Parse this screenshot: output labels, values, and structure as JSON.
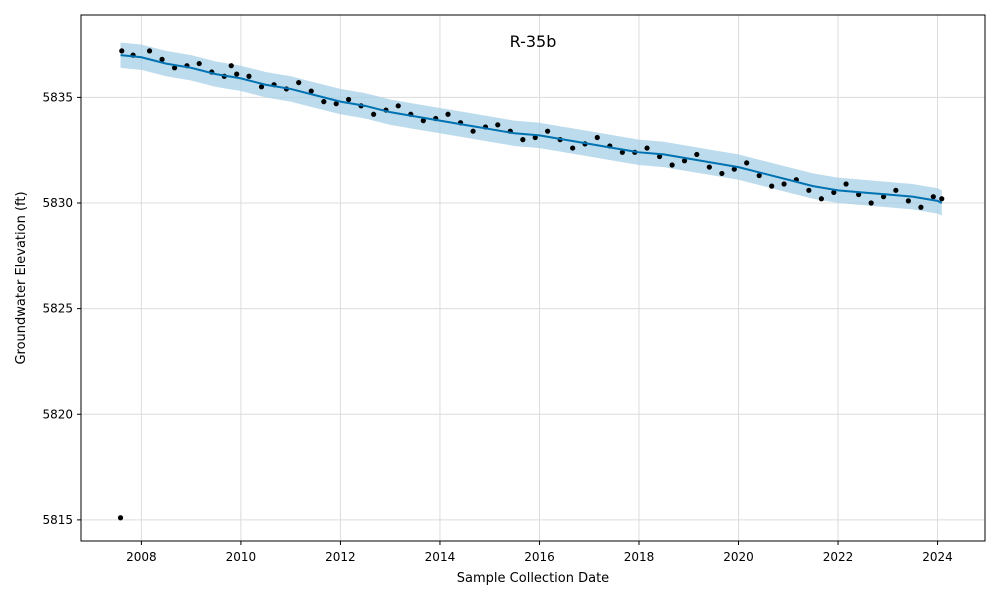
{
  "chart_data": {
    "type": "scatter",
    "title": "R-35b",
    "xlabel": "Sample Collection Date",
    "ylabel": "Groundwater Elevation (ft)",
    "xlim": [
      "2006-10-15",
      "2024-12-15"
    ],
    "ylim": [
      5814,
      5838.9
    ],
    "x_ticks": [
      "2008",
      "2010",
      "2012",
      "2014",
      "2016",
      "2018",
      "2020",
      "2022",
      "2024"
    ],
    "y_ticks": [
      5815,
      5820,
      5825,
      5830,
      5835
    ],
    "grid": true,
    "colors": {
      "observations": "#000000",
      "forecast_line": "#0072B2",
      "uncertainty_band": "#a6cfe5"
    },
    "series": [
      {
        "role": "observed",
        "x": [
          "2007-08-01",
          "2007-08-10",
          "2007-11-01",
          "2008-03-01",
          "2008-06-01",
          "2008-09-01",
          "2008-12-01",
          "2009-03-01",
          "2009-06-01",
          "2009-09-01",
          "2009-10-22",
          "2009-12-01",
          "2010-03-01",
          "2010-06-01",
          "2010-09-01",
          "2010-12-01",
          "2011-03-01",
          "2011-06-01",
          "2011-09-01",
          "2011-12-01",
          "2012-03-01",
          "2012-06-01",
          "2012-09-01",
          "2012-12-01",
          "2013-03-01",
          "2013-06-01",
          "2013-09-01",
          "2013-12-01",
          "2014-03-01",
          "2014-06-01",
          "2014-09-01",
          "2014-12-01",
          "2015-03-01",
          "2015-06-01",
          "2015-09-01",
          "2015-12-01",
          "2016-03-01",
          "2016-06-01",
          "2016-09-01",
          "2016-12-01",
          "2017-03-01",
          "2017-06-01",
          "2017-09-01",
          "2017-12-01",
          "2018-03-01",
          "2018-06-01",
          "2018-09-01",
          "2018-12-01",
          "2019-03-01",
          "2019-06-01",
          "2019-09-01",
          "2019-12-01",
          "2020-03-01",
          "2020-06-01",
          "2020-09-01",
          "2020-12-01",
          "2021-03-01",
          "2021-06-01",
          "2021-09-01",
          "2021-12-01",
          "2022-03-01",
          "2022-06-01",
          "2022-09-01",
          "2022-12-01",
          "2023-03-01",
          "2023-06-01",
          "2023-09-01",
          "2023-12-01",
          "2024-02-01"
        ],
        "y": [
          5815.1,
          5837.2,
          5837.0,
          5837.2,
          5836.8,
          5836.4,
          5836.5,
          5836.6,
          5836.2,
          5836.0,
          5836.5,
          5836.1,
          5836.0,
          5835.5,
          5835.6,
          5835.4,
          5835.7,
          5835.3,
          5834.8,
          5834.7,
          5834.9,
          5834.6,
          5834.2,
          5834.4,
          5834.6,
          5834.2,
          5833.9,
          5834.0,
          5834.2,
          5833.8,
          5833.4,
          5833.6,
          5833.7,
          5833.4,
          5833.0,
          5833.1,
          5833.4,
          5833.0,
          5832.6,
          5832.8,
          5833.1,
          5832.7,
          5832.4,
          5832.4,
          5832.6,
          5832.2,
          5831.8,
          5832.0,
          5832.3,
          5831.7,
          5831.4,
          5831.6,
          5831.9,
          5831.3,
          5830.8,
          5830.9,
          5831.1,
          5830.6,
          5830.2,
          5830.5,
          5830.9,
          5830.4,
          5830.0,
          5830.3,
          5830.6,
          5830.1,
          5829.8,
          5830.3,
          5830.2
        ]
      },
      {
        "role": "fit",
        "x": [
          "2007-08-01",
          "2008-01-01",
          "2008-07-01",
          "2009-01-01",
          "2009-07-01",
          "2010-01-01",
          "2010-07-01",
          "2011-01-01",
          "2011-07-01",
          "2012-01-01",
          "2012-07-01",
          "2013-01-01",
          "2013-07-01",
          "2014-01-01",
          "2014-07-01",
          "2015-01-01",
          "2015-07-01",
          "2016-01-01",
          "2016-07-01",
          "2017-01-01",
          "2017-07-01",
          "2018-01-01",
          "2018-07-01",
          "2019-01-01",
          "2019-07-01",
          "2020-01-01",
          "2020-07-01",
          "2021-01-01",
          "2021-07-01",
          "2022-01-01",
          "2022-07-01",
          "2023-01-01",
          "2023-07-01",
          "2024-01-01",
          "2024-02-01"
        ],
        "y": [
          5837.0,
          5836.9,
          5836.6,
          5836.4,
          5836.1,
          5835.9,
          5835.6,
          5835.4,
          5835.1,
          5834.8,
          5834.6,
          5834.3,
          5834.1,
          5833.9,
          5833.7,
          5833.5,
          5833.3,
          5833.2,
          5833.0,
          5832.8,
          5832.6,
          5832.4,
          5832.3,
          5832.1,
          5831.9,
          5831.7,
          5831.4,
          5831.1,
          5830.8,
          5830.6,
          5830.5,
          5830.4,
          5830.3,
          5830.1,
          5830.0
        ],
        "band_halfwidth": 0.6
      }
    ]
  }
}
